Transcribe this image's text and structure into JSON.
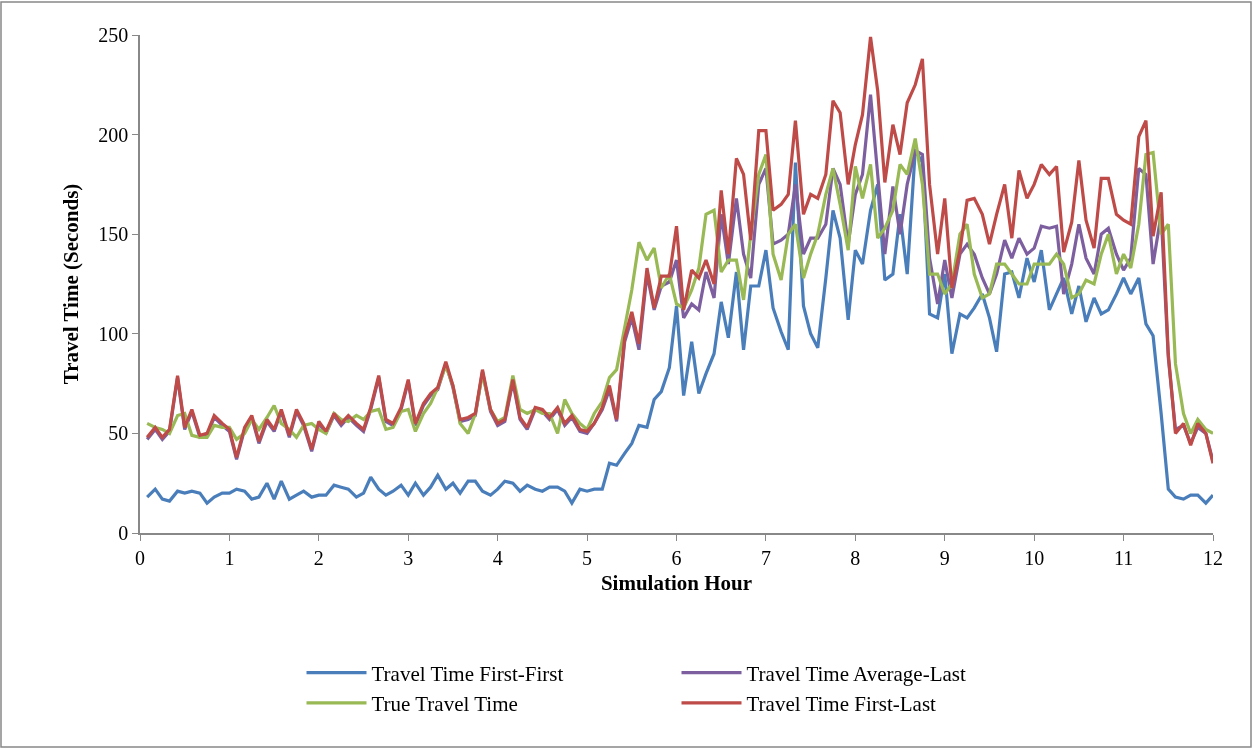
{
  "chart_data": {
    "type": "line",
    "xlabel": "Simulation Hour",
    "ylabel": "Travel Time (Seconds)",
    "x": [
      0.08,
      0.17,
      0.25,
      0.33,
      0.42,
      0.5,
      0.58,
      0.67,
      0.75,
      0.83,
      0.92,
      1,
      1.08,
      1.17,
      1.25,
      1.33,
      1.42,
      1.5,
      1.58,
      1.67,
      1.75,
      1.83,
      1.92,
      2,
      2.08,
      2.17,
      2.25,
      2.33,
      2.42,
      2.5,
      2.58,
      2.67,
      2.75,
      2.83,
      2.92,
      3,
      3.08,
      3.17,
      3.25,
      3.33,
      3.42,
      3.5,
      3.58,
      3.67,
      3.75,
      3.83,
      3.92,
      4,
      4.08,
      4.17,
      4.25,
      4.33,
      4.42,
      4.5,
      4.58,
      4.67,
      4.75,
      4.83,
      4.92,
      5,
      5.08,
      5.17,
      5.25,
      5.33,
      5.42,
      5.5,
      5.58,
      5.67,
      5.75,
      5.83,
      5.92,
      6,
      6.08,
      6.17,
      6.25,
      6.33,
      6.42,
      6.5,
      6.58,
      6.67,
      6.75,
      6.83,
      6.92,
      7,
      7.08,
      7.17,
      7.25,
      7.33,
      7.42,
      7.5,
      7.58,
      7.67,
      7.75,
      7.83,
      7.92,
      8,
      8.08,
      8.17,
      8.25,
      8.33,
      8.42,
      8.5,
      8.58,
      8.67,
      8.75,
      8.83,
      8.92,
      9,
      9.08,
      9.17,
      9.25,
      9.33,
      9.42,
      9.5,
      9.58,
      9.67,
      9.75,
      9.83,
      9.92,
      10,
      10.08,
      10.17,
      10.25,
      10.33,
      10.42,
      10.5,
      10.58,
      10.67,
      10.75,
      10.83,
      10.92,
      11,
      11.08,
      11.17,
      11.25,
      11.33,
      11.42,
      11.5,
      11.58,
      11.67,
      11.75,
      11.83,
      11.92,
      12
    ],
    "series": [
      {
        "name": "Travel Time First-First",
        "color": "#4a7ebb",
        "values": [
          18,
          22,
          17,
          16,
          21,
          20,
          21,
          20,
          15,
          18,
          20,
          20,
          22,
          21,
          17,
          18,
          25,
          17,
          26,
          17,
          19,
          21,
          18,
          19,
          19,
          24,
          23,
          22,
          18,
          20,
          28,
          22,
          19,
          21,
          24,
          19,
          25,
          19,
          23,
          29,
          22,
          25,
          20,
          26,
          26,
          21,
          19,
          22,
          26,
          25,
          21,
          24,
          22,
          21,
          23,
          23,
          21,
          15,
          22,
          21,
          22,
          22,
          35,
          34,
          40,
          45,
          54,
          53,
          67,
          71,
          83,
          114,
          69,
          96,
          70,
          80,
          90,
          116,
          98,
          131,
          92,
          124,
          124,
          142,
          113,
          101,
          92,
          186,
          114,
          100,
          93,
          128,
          162,
          148,
          107,
          142,
          135,
          162,
          175,
          127,
          130,
          160,
          130,
          192,
          186,
          110,
          108,
          130,
          90,
          110,
          108,
          113,
          120,
          108,
          91,
          130,
          131,
          118,
          138,
          126,
          142,
          112,
          120,
          128,
          110,
          124,
          106,
          118,
          110,
          112,
          120,
          128,
          120,
          128,
          105,
          99,
          60,
          22,
          18,
          17,
          19,
          19,
          15,
          19
        ]
      },
      {
        "name": "Travel Time Average-Last",
        "color": "#7d5fa0",
        "values": [
          47,
          52,
          47,
          51,
          78,
          52,
          61,
          48,
          49,
          58,
          54,
          51,
          37,
          52,
          58,
          45,
          56,
          51,
          61,
          48,
          61,
          54,
          41,
          55,
          50,
          59,
          54,
          58,
          54,
          51,
          62,
          78,
          56,
          54,
          62,
          76,
          54,
          64,
          69,
          72,
          85,
          73,
          56,
          57,
          59,
          81,
          61,
          54,
          56,
          76,
          57,
          52,
          62,
          61,
          57,
          62,
          54,
          58,
          51,
          50,
          55,
          62,
          72,
          56,
          96,
          108,
          92,
          130,
          112,
          124,
          126,
          137,
          108,
          115,
          112,
          131,
          118,
          160,
          135,
          168,
          140,
          128,
          175,
          183,
          145,
          147,
          150,
          175,
          140,
          148,
          148,
          155,
          183,
          175,
          145,
          170,
          180,
          220,
          180,
          140,
          174,
          150,
          175,
          192,
          190,
          138,
          115,
          137,
          118,
          140,
          145,
          140,
          128,
          120,
          130,
          147,
          138,
          148,
          140,
          143,
          154,
          153,
          154,
          120,
          135,
          155,
          138,
          130,
          150,
          153,
          140,
          132,
          138,
          183,
          180,
          135,
          160,
          88,
          52,
          54,
          45,
          53,
          50,
          36
        ]
      },
      {
        "name": "True Travel Time",
        "color": "#98b954",
        "values": [
          55,
          53,
          52,
          50,
          59,
          60,
          49,
          48,
          48,
          54,
          53,
          53,
          47,
          50,
          57,
          52,
          58,
          64,
          55,
          52,
          48,
          54,
          55,
          52,
          50,
          60,
          57,
          56,
          59,
          57,
          61,
          62,
          52,
          53,
          61,
          62,
          51,
          60,
          65,
          73,
          84,
          74,
          55,
          50,
          60,
          80,
          62,
          56,
          58,
          79,
          62,
          60,
          62,
          60,
          60,
          50,
          67,
          60,
          55,
          52,
          60,
          66,
          78,
          82,
          103,
          122,
          146,
          137,
          143,
          123,
          130,
          115,
          113,
          122,
          133,
          160,
          162,
          131,
          137,
          137,
          117,
          150,
          180,
          190,
          140,
          127,
          150,
          155,
          128,
          140,
          150,
          170,
          183,
          165,
          142,
          184,
          168,
          185,
          148,
          153,
          162,
          185,
          180,
          198,
          175,
          130,
          130,
          120,
          125,
          150,
          155,
          130,
          118,
          120,
          135,
          135,
          130,
          125,
          125,
          135,
          135,
          135,
          140,
          135,
          118,
          120,
          127,
          125,
          140,
          150,
          130,
          140,
          133,
          155,
          190,
          191,
          150,
          155,
          85,
          60,
          50,
          57,
          52,
          50
        ]
      },
      {
        "name": "Travel Time First-Last",
        "color": "#be4b48",
        "values": [
          48,
          53,
          48,
          52,
          79,
          53,
          62,
          49,
          50,
          59,
          55,
          52,
          38,
          53,
          59,
          46,
          57,
          52,
          62,
          49,
          62,
          55,
          42,
          56,
          51,
          60,
          55,
          59,
          55,
          52,
          63,
          79,
          57,
          55,
          63,
          77,
          55,
          65,
          70,
          73,
          86,
          74,
          57,
          58,
          60,
          82,
          62,
          55,
          57,
          77,
          58,
          53,
          63,
          62,
          58,
          63,
          55,
          59,
          52,
          51,
          55,
          63,
          74,
          57,
          98,
          111,
          95,
          133,
          113,
          129,
          129,
          154,
          112,
          132,
          128,
          137,
          125,
          172,
          140,
          188,
          180,
          147,
          202,
          202,
          162,
          165,
          170,
          207,
          160,
          170,
          168,
          180,
          217,
          211,
          175,
          195,
          210,
          249,
          222,
          176,
          205,
          190,
          216,
          225,
          238,
          175,
          140,
          168,
          123,
          142,
          167,
          168,
          160,
          145,
          160,
          175,
          148,
          182,
          168,
          175,
          185,
          180,
          184,
          141,
          156,
          187,
          157,
          143,
          178,
          178,
          160,
          157,
          155,
          199,
          207,
          149,
          171,
          90,
          50,
          55,
          44,
          55,
          50,
          35
        ]
      }
    ],
    "xlim": [
      0,
      12
    ],
    "xticks": [
      0,
      1,
      2,
      3,
      4,
      5,
      6,
      7,
      8,
      9,
      10,
      11,
      12
    ],
    "ylim": [
      0,
      250
    ],
    "yticks": [
      0,
      50,
      100,
      150,
      200,
      250
    ],
    "legend": "bottom",
    "marker": "none",
    "line_style": "solid"
  }
}
